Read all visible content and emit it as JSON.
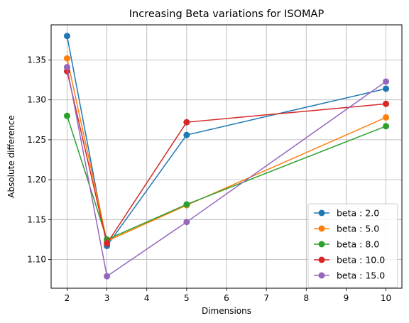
{
  "chart_data": {
    "type": "line",
    "title": "Increasing Beta variations for ISOMAP",
    "xlabel": "Dimensions",
    "ylabel": "Absolute difference",
    "x": [
      2,
      3,
      5,
      10
    ],
    "xlim": [
      1.6,
      10.4
    ],
    "ylim": [
      1.064,
      1.394
    ],
    "xticks": [
      2,
      3,
      4,
      5,
      6,
      7,
      8,
      9,
      10
    ],
    "yticks": [
      1.1,
      1.15,
      1.2,
      1.25,
      1.3,
      1.35
    ],
    "ytick_labels": [
      "1.10",
      "1.15",
      "1.20",
      "1.25",
      "1.30",
      "1.35"
    ],
    "grid": true,
    "legend_position": "lower right",
    "series": [
      {
        "name": "beta : 2.0",
        "color": "#1f77b4",
        "values": [
          1.38,
          1.117,
          1.256,
          1.314
        ]
      },
      {
        "name": "beta : 5.0",
        "color": "#ff7f0e",
        "values": [
          1.352,
          1.123,
          1.168,
          1.278
        ]
      },
      {
        "name": "beta : 8.0",
        "color": "#2ca02c",
        "values": [
          1.28,
          1.125,
          1.169,
          1.267
        ]
      },
      {
        "name": "beta : 10.0",
        "color": "#d62728",
        "values": [
          1.336,
          1.12,
          1.272,
          1.295
        ]
      },
      {
        "name": "beta : 15.0",
        "color": "#9467bd",
        "values": [
          1.341,
          1.079,
          1.147,
          1.323
        ]
      }
    ]
  }
}
